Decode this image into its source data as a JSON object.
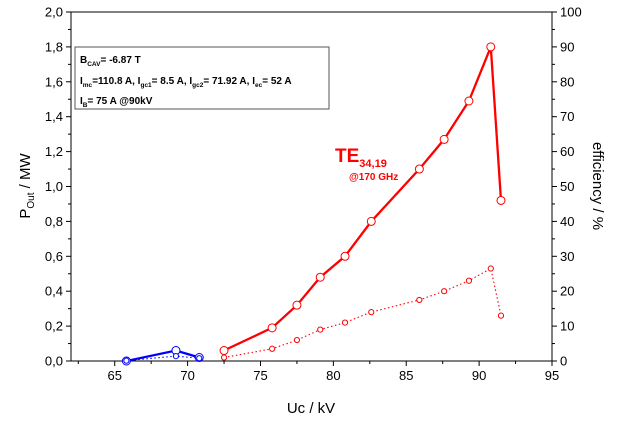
{
  "chart_data": {
    "type": "line",
    "xlabel": "Uc / kV",
    "ylabel_left": {
      "main": "P",
      "sub": "Out",
      "rest": " / MW"
    },
    "ylabel_right": "efficiency / %",
    "xlim": [
      62,
      95
    ],
    "ylim_left": [
      0,
      2.0
    ],
    "ylim_right": [
      0,
      100
    ],
    "x_ticks": [
      "65",
      "70",
      "75",
      "80",
      "85",
      "90",
      "95"
    ],
    "y_left_ticks": [
      "0,0",
      "0,2",
      "0,4",
      "0,6",
      "0,8",
      "1,0",
      "1,2",
      "1,4",
      "1,6",
      "1,8",
      "2,0"
    ],
    "y_right_ticks": [
      "0",
      "10",
      "20",
      "30",
      "40",
      "50",
      "60",
      "70",
      "80",
      "90",
      "100"
    ],
    "grid": false,
    "series": [
      {
        "axis": "left",
        "color": "#0000ff",
        "style": "solid",
        "x": [
          65.8,
          69.2,
          70.8
        ],
        "y": [
          0.0,
          0.06,
          0.02
        ]
      },
      {
        "axis": "right",
        "color": "#0000ff",
        "style": "dotted",
        "x": [
          65.8,
          69.2,
          70.8
        ],
        "y": [
          0.1,
          1.4,
          0.8
        ]
      },
      {
        "axis": "left",
        "color": "#ff0000",
        "style": "solid",
        "x": [
          72.5,
          75.8,
          77.5,
          79.1,
          80.8,
          82.6,
          85.9,
          87.6,
          89.3,
          90.8,
          91.5
        ],
        "y": [
          0.06,
          0.19,
          0.32,
          0.48,
          0.6,
          0.8,
          1.1,
          1.27,
          1.49,
          1.8,
          0.92
        ]
      },
      {
        "axis": "right",
        "color": "#ff0000",
        "style": "dotted",
        "x": [
          72.5,
          75.8,
          77.5,
          79.1,
          80.8,
          82.6,
          85.9,
          87.6,
          89.3,
          90.8,
          91.5
        ],
        "y": [
          1.0,
          3.5,
          6.0,
          9.0,
          11.0,
          14.0,
          17.5,
          20.0,
          23.0,
          26.5,
          13.0
        ]
      }
    ],
    "annotations": {
      "mode": {
        "label": "TE",
        "sub": "34,19",
        "freq": "@170 GHz",
        "color": "#ff0000"
      },
      "info_box": [
        [
          {
            "t": "B"
          },
          {
            "t": "CAV",
            "sub": true
          },
          {
            "t": "= -6.87 T"
          }
        ],
        [
          {
            "t": "I"
          },
          {
            "t": "mc",
            "sub": true
          },
          {
            "t": "=110.8 A, I"
          },
          {
            "t": "gc1",
            "sub": true
          },
          {
            "t": "= 8.5 A, I"
          },
          {
            "t": "gc2",
            "sub": true
          },
          {
            "t": "= 71.92 A, I"
          },
          {
            "t": "ec",
            "sub": true
          },
          {
            "t": "= 52 A"
          }
        ],
        [
          {
            "t": "I"
          },
          {
            "t": "B",
            "sub": true
          },
          {
            "t": "= 75 A @90kV"
          }
        ]
      ]
    }
  }
}
